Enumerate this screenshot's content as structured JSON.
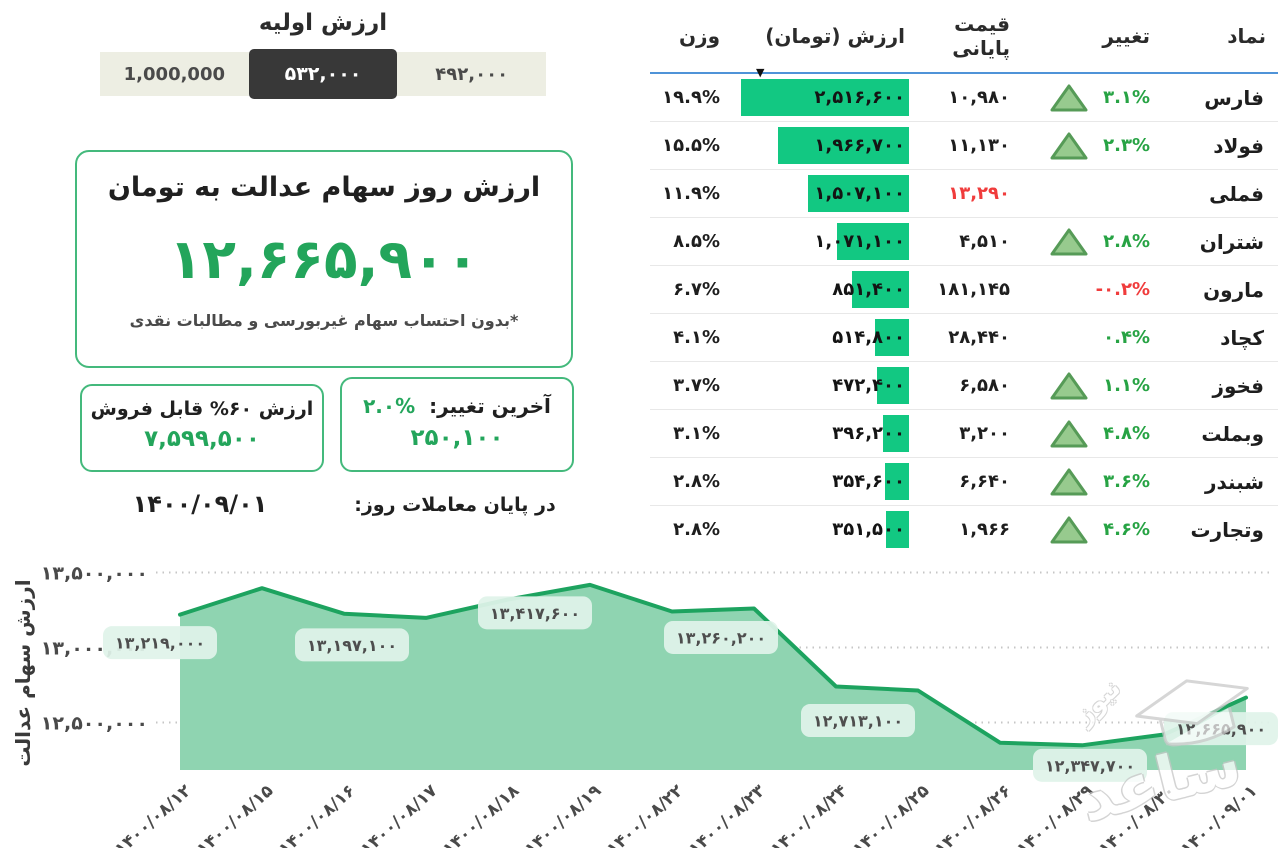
{
  "initial_value": {
    "title": "ارزش اولیه",
    "tabs": [
      {
        "label": "1,000,000",
        "active": false
      },
      {
        "label": "۵۳۲,۰۰۰",
        "active": true
      },
      {
        "label": "۴۹۲,۰۰۰",
        "active": false
      }
    ]
  },
  "main_card": {
    "title": "ارزش روز سهام عدالت به تومان",
    "value": "۱۲,۶۶۵,۹۰۰",
    "footnote": "*بدون احتساب سهام غیربورسی و مطالبات نقدی"
  },
  "sellable_card": {
    "label": "ارزش ۶۰% قابل فروش",
    "value": "۷,۵۹۹,۵۰۰",
    "date": "۱۴۰۰/۰۹/۰۱"
  },
  "change_card": {
    "label": "آخرین تغییر:",
    "percent": "۲.۰%",
    "value": "۲۵۰,۱۰۰",
    "caption": "در پایان معاملات روز:"
  },
  "table": {
    "headers": {
      "symbol": "نماد",
      "change": "تغییر",
      "closing_price": "قیمت پایانی",
      "value": "ارزش (تومان)",
      "weight": "وزن"
    },
    "sort_icon": "▼",
    "rows": [
      {
        "symbol": "فارس",
        "change": "۳.۱%",
        "change_color": "green",
        "triangle": true,
        "closing": "۱۰,۹۸۰",
        "closing_red": false,
        "value_label": "۲,۵۱۶,۶۰۰",
        "value_num": 2516600,
        "weight": "۱۹.۹%"
      },
      {
        "symbol": "فولاد",
        "change": "۲.۳%",
        "change_color": "green",
        "triangle": true,
        "closing": "۱۱,۱۳۰",
        "closing_red": false,
        "value_label": "۱,۹۶۶,۷۰۰",
        "value_num": 1966700,
        "weight": "۱۵.۵%"
      },
      {
        "symbol": "فملی",
        "change": "",
        "change_color": "green",
        "triangle": false,
        "closing": "۱۳,۲۹۰",
        "closing_red": true,
        "value_label": "۱,۵۰۷,۱۰۰",
        "value_num": 1507100,
        "weight": "۱۱.۹%"
      },
      {
        "symbol": "شتران",
        "change": "۲.۸%",
        "change_color": "green",
        "triangle": true,
        "closing": "۴,۵۱۰",
        "closing_red": false,
        "value_label": "۱,۰۷۱,۱۰۰",
        "value_num": 1071100,
        "weight": "۸.۵%"
      },
      {
        "symbol": "مارون",
        "change": "-۰.۲%",
        "change_color": "red",
        "triangle": false,
        "closing": "۱۸۱,۱۴۵",
        "closing_red": false,
        "value_label": "۸۵۱,۴۰۰",
        "value_num": 851400,
        "weight": "۶.۷%"
      },
      {
        "symbol": "کچاد",
        "change": "۰.۴%",
        "change_color": "green",
        "triangle": false,
        "closing": "۲۸,۴۴۰",
        "closing_red": false,
        "value_label": "۵۱۴,۸۰۰",
        "value_num": 514800,
        "weight": "۴.۱%"
      },
      {
        "symbol": "فخوز",
        "change": "۱.۱%",
        "change_color": "green",
        "triangle": true,
        "closing": "۶,۵۸۰",
        "closing_red": false,
        "value_label": "۴۷۲,۴۰۰",
        "value_num": 472400,
        "weight": "۳.۷%"
      },
      {
        "symbol": "وبملت",
        "change": "۴.۸%",
        "change_color": "green",
        "triangle": true,
        "closing": "۳,۲۰۰",
        "closing_red": false,
        "value_label": "۳۹۶,۲۰۰",
        "value_num": 396200,
        "weight": "۳.۱%"
      },
      {
        "symbol": "شبندر",
        "change": "۳.۶%",
        "change_color": "green",
        "triangle": true,
        "closing": "۶,۶۴۰",
        "closing_red": false,
        "value_label": "۳۵۴,۶۰۰",
        "value_num": 354600,
        "weight": "۲.۸%"
      },
      {
        "symbol": "وتجارت",
        "change": "۴.۶%",
        "change_color": "green",
        "triangle": true,
        "closing": "۱,۹۶۶",
        "closing_red": false,
        "value_label": "۳۵۱,۵۰۰",
        "value_num": 351500,
        "weight": "۲.۸%"
      }
    ]
  },
  "chart_data": {
    "type": "area",
    "ylabel": "ارزش سهام عدالت",
    "ylim": [
      12100000,
      13600000
    ],
    "grid": "dotted-horizontal",
    "legend": "none",
    "y_ticks": [
      {
        "value": 13500000,
        "label": "۱۳,۵۰۰,۰۰۰"
      },
      {
        "value": 13000000,
        "label": "۱۳,۰۰۰,۰۰۰"
      },
      {
        "value": 12500000,
        "label": "۱۲,۵۰۰,۰۰۰"
      }
    ],
    "categories": [
      "۱۴۰۰/۰۸/۱۲",
      "۱۴۰۰/۰۸/۱۵",
      "۱۴۰۰/۰۸/۱۶",
      "۱۴۰۰/۰۸/۱۷",
      "۱۴۰۰/۰۸/۱۸",
      "۱۴۰۰/۰۸/۱۹",
      "۱۴۰۰/۰۸/۲۲",
      "۱۴۰۰/۰۸/۲۳",
      "۱۴۰۰/۰۸/۲۴",
      "۱۴۰۰/۰۸/۲۵",
      "۱۴۰۰/۰۸/۲۶",
      "۱۴۰۰/۰۸/۲۹",
      "۱۴۰۰/۰۸/۳۰",
      "۱۴۰۰/۰۹/۰۱"
    ],
    "values": [
      13219000,
      13395000,
      13225000,
      13197100,
      13320000,
      13417600,
      13240000,
      13260200,
      12740000,
      12713100,
      12365000,
      12347700,
      12420000,
      12665900
    ],
    "annotations": [
      {
        "index": 0,
        "label": "۱۳,۲۱۹,۰۰۰"
      },
      {
        "index": 3,
        "label": "۱۳,۱۹۷,۱۰۰"
      },
      {
        "index": 5,
        "label": "۱۳,۴۱۷,۶۰۰"
      },
      {
        "index": 7,
        "label": "۱۳,۲۶۰,۲۰۰"
      },
      {
        "index": 9,
        "label": "۱۲,۷۱۳,۱۰۰"
      },
      {
        "index": 11,
        "label": "۱۲,۳۴۷,۷۰۰"
      },
      {
        "index": 13,
        "label": "۱۲,۶۶۵,۹۰۰"
      }
    ],
    "line_color": "#1da35f",
    "fill_color": "#8fd4b1",
    "annotation_bg": "#e0f3e9",
    "annotation_text_color": "#4e4e4e"
  },
  "watermark": {
    "title": "ساعد",
    "subtitle": "نیوز"
  },
  "colors": {
    "accent_green": "#23a55b",
    "bar_green": "#12c882",
    "negative_red": "#f03c3c",
    "header_underline_blue": "#4f93d8",
    "tab_strip_bg": "#edeee3",
    "tab_active_bg": "#383838"
  }
}
